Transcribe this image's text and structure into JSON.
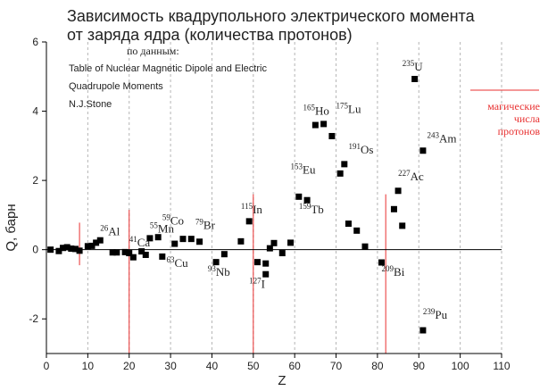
{
  "chart_data": {
    "type": "scatter",
    "title_lines": [
      "Зависимость квадрупольного электрического момента",
      "от заряда ядра (количества протонов)"
    ],
    "xlabel": "Z",
    "ylabel": "Q, барн",
    "xlim": [
      0,
      110
    ],
    "ylim": [
      -3,
      6
    ],
    "x_ticks": [
      0,
      10,
      20,
      30,
      40,
      50,
      60,
      70,
      80,
      90,
      100,
      110
    ],
    "y_ticks": [
      -2,
      0,
      2,
      4,
      6
    ],
    "grid": "vertical dashed",
    "source_lines": [
      "по данным:",
      "Table of Nuclear Magnetic Dipole and Electric",
      "Quadrupole Moments",
      "N.J.Stone"
    ],
    "legend": {
      "label_lines": [
        "магические",
        "числа",
        "протонов"
      ],
      "color": "#e83030"
    },
    "magic_numbers": [
      {
        "z": 8,
        "ymin": -0.45,
        "ymax": 0.78
      },
      {
        "z": 20,
        "ymin": -3,
        "ymax": 1.15
      },
      {
        "z": 50,
        "ymin": -3,
        "ymax": 1.6
      },
      {
        "z": 82,
        "ymin": -3,
        "ymax": 1.6
      }
    ],
    "points": [
      {
        "x": 1,
        "y": 0.0
      },
      {
        "x": 3,
        "y": -0.04
      },
      {
        "x": 4,
        "y": 0.05
      },
      {
        "x": 5,
        "y": 0.07
      },
      {
        "x": 6,
        "y": 0.03
      },
      {
        "x": 7,
        "y": 0.02
      },
      {
        "x": 8,
        "y": -0.03
      },
      {
        "x": 10,
        "y": 0.1
      },
      {
        "x": 11,
        "y": 0.11
      },
      {
        "x": 12,
        "y": 0.2
      },
      {
        "x": 13,
        "y": 0.27
      },
      {
        "x": 16,
        "y": -0.08
      },
      {
        "x": 17,
        "y": -0.08
      },
      {
        "x": 19,
        "y": -0.07
      },
      {
        "x": 20,
        "y": -0.1
      },
      {
        "x": 21,
        "y": -0.22
      },
      {
        "x": 23,
        "y": -0.05
      },
      {
        "x": 24,
        "y": -0.15
      },
      {
        "x": 25,
        "y": 0.33
      },
      {
        "x": 27,
        "y": 0.36
      },
      {
        "x": 28,
        "y": -0.2
      },
      {
        "x": 31,
        "y": 0.17
      },
      {
        "x": 33,
        "y": 0.31
      },
      {
        "x": 35,
        "y": 0.31
      },
      {
        "x": 37,
        "y": 0.23
      },
      {
        "x": 41,
        "y": -0.36
      },
      {
        "x": 43,
        "y": -0.13
      },
      {
        "x": 47,
        "y": 0.24
      },
      {
        "x": 49,
        "y": 0.82
      },
      {
        "x": 51,
        "y": -0.36
      },
      {
        "x": 53,
        "y": -0.4
      },
      {
        "x": 53,
        "y": -0.71
      },
      {
        "x": 54,
        "y": 0.04
      },
      {
        "x": 55,
        "y": 0.19
      },
      {
        "x": 57,
        "y": -0.1
      },
      {
        "x": 59,
        "y": 0.2
      },
      {
        "x": 61,
        "y": 1.53
      },
      {
        "x": 63,
        "y": 1.43
      },
      {
        "x": 65,
        "y": 3.6
      },
      {
        "x": 67,
        "y": 3.63
      },
      {
        "x": 69,
        "y": 3.28
      },
      {
        "x": 71,
        "y": 2.2
      },
      {
        "x": 72,
        "y": 2.47
      },
      {
        "x": 73,
        "y": 0.75
      },
      {
        "x": 75,
        "y": 0.55
      },
      {
        "x": 77,
        "y": 0.09
      },
      {
        "x": 81,
        "y": -0.37
      },
      {
        "x": 84,
        "y": 1.17
      },
      {
        "x": 85,
        "y": 1.7
      },
      {
        "x": 86,
        "y": 0.69
      },
      {
        "x": 89,
        "y": 4.93
      },
      {
        "x": 91,
        "y": 2.86
      },
      {
        "x": 91,
        "y": -2.33
      }
    ],
    "annotations": [
      {
        "mass": "26",
        "sym": "Al",
        "x": 13,
        "y": 0.42
      },
      {
        "mass": "41",
        "sym": "Ca",
        "x": 20,
        "y": 0.1
      },
      {
        "mass": "55",
        "sym": "Mn",
        "x": 25,
        "y": 0.5
      },
      {
        "mass": "59",
        "sym": "Co",
        "x": 28,
        "y": 0.72
      },
      {
        "mass": "63",
        "sym": "Cu",
        "x": 29,
        "y": -0.5
      },
      {
        "mass": "79",
        "sym": "Br",
        "x": 36,
        "y": 0.6
      },
      {
        "mass": "93",
        "sym": "Nb",
        "x": 39,
        "y": -0.75
      },
      {
        "mass": "115",
        "sym": "In",
        "x": 47,
        "y": 1.05
      },
      {
        "mass": "127",
        "sym": "I",
        "x": 49,
        "y": -1.1
      },
      {
        "mass": "153",
        "sym": "Eu",
        "x": 59,
        "y": 2.2
      },
      {
        "mass": "159",
        "sym": "Tb",
        "x": 61,
        "y": 1.05
      },
      {
        "mass": "165",
        "sym": "Ho",
        "x": 62,
        "y": 3.9
      },
      {
        "mass": "175",
        "sym": "Lu",
        "x": 70,
        "y": 3.95
      },
      {
        "mass": "191",
        "sym": "Os",
        "x": 73,
        "y": 2.78
      },
      {
        "mass": "209",
        "sym": "Bi",
        "x": 81,
        "y": -0.75
      },
      {
        "mass": "227",
        "sym": "Ac",
        "x": 85,
        "y": 2.0
      },
      {
        "mass": "235",
        "sym": "U",
        "x": 86,
        "y": 5.17
      },
      {
        "mass": "243",
        "sym": "Am",
        "x": 92,
        "y": 3.1
      },
      {
        "mass": "239",
        "sym": "Pu",
        "x": 91,
        "y": -2.0
      }
    ]
  }
}
